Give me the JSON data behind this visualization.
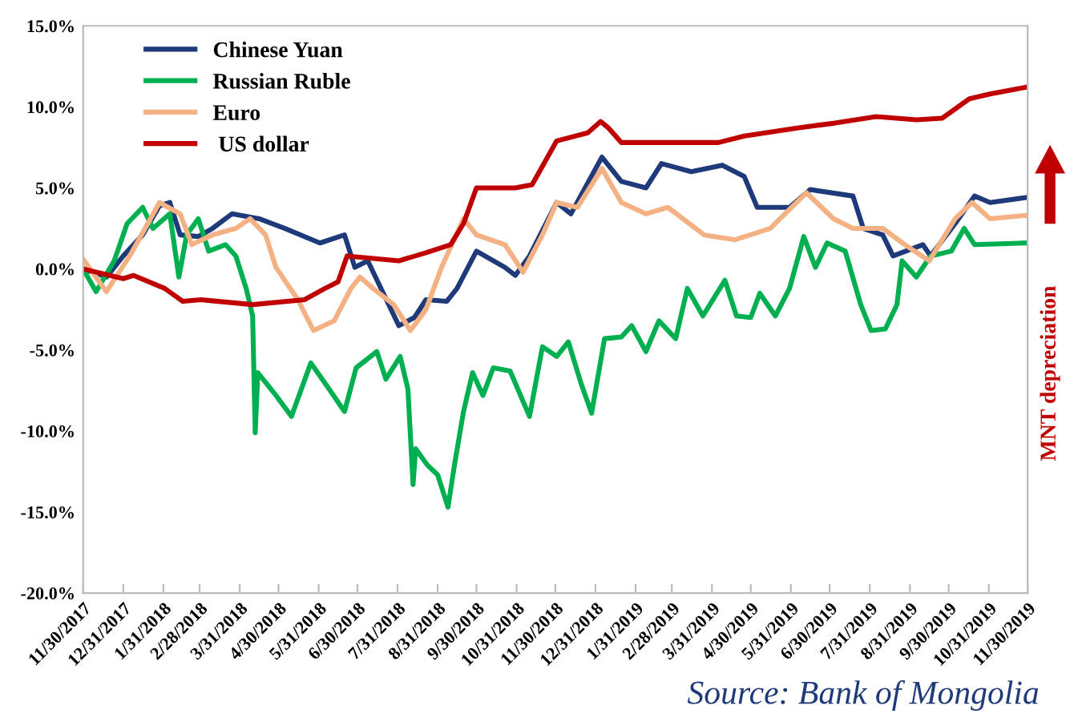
{
  "chart_data": {
    "type": "line",
    "xlim": [
      "2017-11-30",
      "2019-11-30"
    ],
    "xticks": [
      {
        "value": "2017-11-30",
        "label": "11/30/2017"
      },
      {
        "value": "2017-12-31",
        "label": "12/31/2017"
      },
      {
        "value": "2018-01-31",
        "label": "1/31/2018"
      },
      {
        "value": "2018-02-28",
        "label": "2/28/2018"
      },
      {
        "value": "2018-03-31",
        "label": "3/31/2018"
      },
      {
        "value": "2018-04-30",
        "label": "4/30/2018"
      },
      {
        "value": "2018-05-31",
        "label": "5/31/2018"
      },
      {
        "value": "2018-06-30",
        "label": "6/30/2018"
      },
      {
        "value": "2018-07-31",
        "label": "7/31/2018"
      },
      {
        "value": "2018-08-31",
        "label": "8/31/2018"
      },
      {
        "value": "2018-09-30",
        "label": "9/30/2018"
      },
      {
        "value": "2018-10-31",
        "label": "10/31/2018"
      },
      {
        "value": "2018-11-30",
        "label": "11/30/2018"
      },
      {
        "value": "2018-12-31",
        "label": "12/31/2018"
      },
      {
        "value": "2019-01-31",
        "label": "1/31/2019"
      },
      {
        "value": "2019-02-28",
        "label": "2/28/2019"
      },
      {
        "value": "2019-03-31",
        "label": "3/31/2019"
      },
      {
        "value": "2019-04-30",
        "label": "4/30/2019"
      },
      {
        "value": "2019-05-31",
        "label": "5/31/2019"
      },
      {
        "value": "2019-06-30",
        "label": "6/30/2019"
      },
      {
        "value": "2019-07-31",
        "label": "7/31/2019"
      },
      {
        "value": "2019-08-31",
        "label": "8/31/2019"
      },
      {
        "value": "2019-09-30",
        "label": "9/30/2019"
      },
      {
        "value": "2019-10-31",
        "label": "10/31/2019"
      },
      {
        "value": "2019-11-30",
        "label": "11/30/2019"
      }
    ],
    "ylim": [
      -20,
      15
    ],
    "yticks": [
      {
        "value": -20,
        "label": "-20.0%"
      },
      {
        "value": -15,
        "label": "-15.0%"
      },
      {
        "value": -10,
        "label": "-10.0%"
      },
      {
        "value": -5,
        "label": "-5.0%"
      },
      {
        "value": 0,
        "label": "0.0%"
      },
      {
        "value": 5,
        "label": "5.0%"
      },
      {
        "value": 10,
        "label": "10.0%"
      },
      {
        "value": 15,
        "label": "15.0%"
      }
    ],
    "grid": false,
    "legend": "top left",
    "marker": "none",
    "line_style": "solid",
    "annotations": [
      "Source: Bank of Mongolia",
      "MNT depreciation"
    ],
    "series": [
      {
        "name": "Chinese Yuan",
        "color": "#1f3a7a",
        "x": [
          "2017-11-30",
          "2017-12-18",
          "2017-12-31",
          "2018-01-15",
          "2018-01-28",
          "2018-02-05",
          "2018-02-13",
          "2018-02-27",
          "2018-03-10",
          "2018-03-25",
          "2018-04-15",
          "2018-05-05",
          "2018-06-01",
          "2018-06-20",
          "2018-06-28",
          "2018-07-08",
          "2018-07-20",
          "2018-08-01",
          "2018-08-13",
          "2018-08-22",
          "2018-09-07",
          "2018-09-15",
          "2018-09-30",
          "2018-10-22",
          "2018-10-30",
          "2018-11-10",
          "2018-12-01",
          "2018-12-12",
          "2019-01-05",
          "2019-01-20",
          "2019-02-08",
          "2019-02-20",
          "2019-03-15",
          "2019-04-08",
          "2019-04-25",
          "2019-05-05",
          "2019-05-30",
          "2019-06-15",
          "2019-07-18",
          "2019-07-26",
          "2019-08-10",
          "2019-08-18",
          "2019-09-10",
          "2019-09-16",
          "2019-10-05",
          "2019-10-20",
          "2019-11-01",
          "2019-11-28"
        ],
        "values": [
          0,
          -0.5,
          0.8,
          2.1,
          3.9,
          4.1,
          2.1,
          2.0,
          2.5,
          3.4,
          3.1,
          2.5,
          1.6,
          2.1,
          0.1,
          0.5,
          -1.5,
          -3.5,
          -3.0,
          -1.9,
          -2.0,
          -1.2,
          1.1,
          0.1,
          -0.4,
          0.8,
          4.1,
          3.4,
          6.9,
          5.4,
          5.0,
          6.5,
          6.0,
          6.4,
          5.7,
          3.8,
          3.8,
          4.9,
          4.5,
          2.5,
          2.1,
          0.8,
          1.5,
          0.8,
          2.8,
          4.5,
          4.1,
          4.4
        ]
      },
      {
        "name": "Russian Ruble",
        "color": "#00b050",
        "x": [
          "2017-11-30",
          "2017-12-10",
          "2017-12-24",
          "2018-01-03",
          "2018-01-15",
          "2018-01-23",
          "2018-02-05",
          "2018-02-12",
          "2018-02-18",
          "2018-02-27",
          "2018-03-07",
          "2018-03-20",
          "2018-03-28",
          "2018-04-05",
          "2018-04-10",
          "2018-04-12",
          "2018-04-14",
          "2018-04-28",
          "2018-05-10",
          "2018-05-25",
          "2018-06-08",
          "2018-06-20",
          "2018-06-29",
          "2018-07-15",
          "2018-07-22",
          "2018-08-02",
          "2018-08-08",
          "2018-08-12",
          "2018-08-14",
          "2018-08-23",
          "2018-08-31",
          "2018-09-08",
          "2018-09-13",
          "2018-09-20",
          "2018-09-27",
          "2018-10-05",
          "2018-10-13",
          "2018-10-26",
          "2018-11-10",
          "2018-11-20",
          "2018-12-01",
          "2018-12-10",
          "2018-12-20",
          "2018-12-28",
          "2019-01-07",
          "2019-01-20",
          "2019-01-28",
          "2019-02-08",
          "2019-02-18",
          "2019-03-03",
          "2019-03-12",
          "2019-03-24",
          "2019-04-10",
          "2019-04-19",
          "2019-04-30",
          "2019-05-07",
          "2019-05-19",
          "2019-05-30",
          "2019-06-10",
          "2019-06-19",
          "2019-06-28",
          "2019-07-12",
          "2019-07-24",
          "2019-08-01",
          "2019-08-12",
          "2019-08-21",
          "2019-08-25",
          "2019-09-05",
          "2019-09-16",
          "2019-10-02",
          "2019-10-12",
          "2019-10-20",
          "2019-11-28"
        ],
        "values": [
          0,
          -1.4,
          0.5,
          2.8,
          3.8,
          2.5,
          3.4,
          -0.5,
          2.1,
          3.1,
          1.1,
          1.5,
          0.8,
          -1.2,
          -2.9,
          -10.1,
          -6.4,
          -7.8,
          -9.1,
          -5.8,
          -7.4,
          -8.8,
          -6.1,
          -5.1,
          -6.8,
          -5.4,
          -7.4,
          -13.3,
          -11.1,
          -12.1,
          -12.7,
          -14.7,
          -12.1,
          -8.8,
          -6.4,
          -7.8,
          -6.1,
          -6.3,
          -9.1,
          -4.8,
          -5.4,
          -4.5,
          -7.1,
          -8.9,
          -4.3,
          -4.2,
          -3.5,
          -5.1,
          -3.2,
          -4.3,
          -1.2,
          -2.9,
          -0.7,
          -2.9,
          -3.0,
          -1.5,
          -2.9,
          -1.2,
          2.0,
          0.1,
          1.6,
          1.1,
          -2.2,
          -3.8,
          -3.7,
          -2.2,
          0.5,
          -0.5,
          0.8,
          1.1,
          2.5,
          1.5,
          1.6
        ]
      },
      {
        "name": "Euro",
        "color": "#f4b183",
        "x": [
          "2017-11-30",
          "2017-12-18",
          "2018-01-05",
          "2018-01-28",
          "2018-02-13",
          "2018-02-22",
          "2018-03-10",
          "2018-03-28",
          "2018-04-08",
          "2018-04-20",
          "2018-04-28",
          "2018-05-15",
          "2018-05-27",
          "2018-06-12",
          "2018-06-25",
          "2018-07-02",
          "2018-07-12",
          "2018-07-28",
          "2018-08-10",
          "2018-08-22",
          "2018-09-03",
          "2018-09-20",
          "2018-09-30",
          "2018-10-22",
          "2018-11-05",
          "2018-11-20",
          "2018-12-01",
          "2018-12-17",
          "2019-01-05",
          "2019-01-20",
          "2019-02-08",
          "2019-02-25",
          "2019-03-25",
          "2019-04-18",
          "2019-05-15",
          "2019-06-12",
          "2019-07-03",
          "2019-07-18",
          "2019-08-10",
          "2019-08-27",
          "2019-09-15",
          "2019-10-05",
          "2019-10-18",
          "2019-11-01",
          "2019-11-28"
        ],
        "values": [
          0.6,
          -1.4,
          0.8,
          4.1,
          3.4,
          1.5,
          2.1,
          2.5,
          3.1,
          2.1,
          0.1,
          -1.9,
          -3.8,
          -3.2,
          -1.2,
          -0.5,
          -1.2,
          -2.2,
          -3.8,
          -2.5,
          0.1,
          3.1,
          2.1,
          1.5,
          -0.2,
          2.1,
          4.1,
          3.8,
          6.2,
          4.1,
          3.4,
          3.8,
          2.1,
          1.8,
          2.5,
          4.7,
          3.1,
          2.5,
          2.5,
          1.5,
          0.5,
          3.1,
          4.1,
          3.1,
          3.3
        ]
      },
      {
        "name": " US dollar",
        "color": "#c00000",
        "x": [
          "2017-11-30",
          "2017-12-31",
          "2018-01-08",
          "2018-02-01",
          "2018-02-15",
          "2018-03-01",
          "2018-04-10",
          "2018-05-20",
          "2018-06-05",
          "2018-06-15",
          "2018-06-22",
          "2018-08-01",
          "2018-08-22",
          "2018-09-10",
          "2018-09-20",
          "2018-09-30",
          "2018-10-30",
          "2018-11-12",
          "2018-12-01",
          "2018-12-25",
          "2019-01-04",
          "2019-01-10",
          "2019-01-20",
          "2019-03-05",
          "2019-04-05",
          "2019-04-25",
          "2019-06-05",
          "2019-07-04",
          "2019-08-05",
          "2019-09-05",
          "2019-09-25",
          "2019-10-16",
          "2019-11-01",
          "2019-11-28"
        ],
        "values": [
          0,
          -0.6,
          -0.4,
          -1.2,
          -2.0,
          -1.9,
          -2.2,
          -1.9,
          -1.2,
          -0.8,
          0.8,
          0.5,
          1.0,
          1.5,
          2.8,
          5.0,
          5.0,
          5.2,
          7.9,
          8.4,
          9.1,
          8.7,
          7.8,
          7.8,
          7.8,
          8.2,
          8.7,
          9.0,
          9.4,
          9.2,
          9.3,
          10.5,
          10.8,
          11.2
        ]
      }
    ]
  }
}
